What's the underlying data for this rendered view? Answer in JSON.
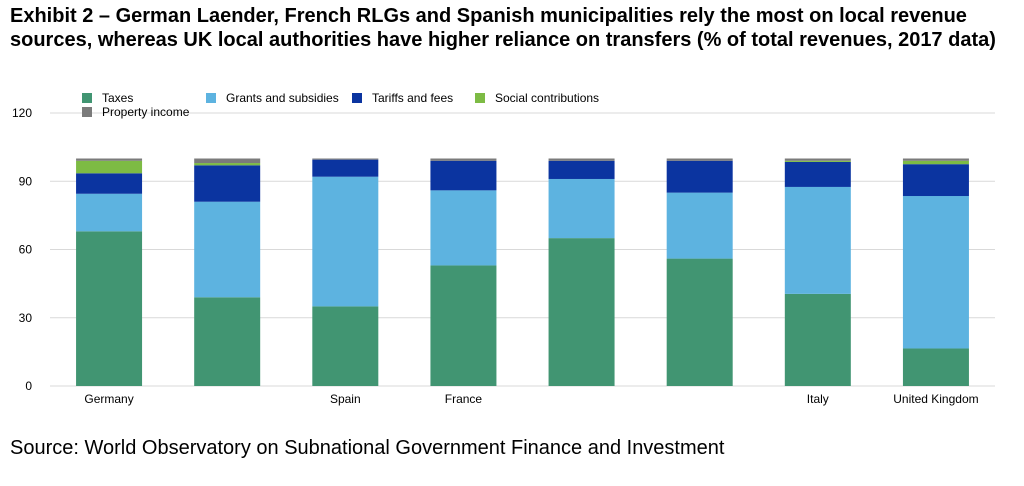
{
  "title": "Exhibit 2 – German Laender, French RLGs and Spanish municipalities rely the most on local revenue sources, whereas UK local authorities have higher reliance on transfers (% of total revenues, 2017 data)",
  "source": "Source: World Observatory on Subnational Government Finance and Investment",
  "colors": {
    "Taxes": "#419572",
    "Grants and subsidies": "#5db3e0",
    "Tariffs and fees": "#0b34a0",
    "Social contributions": "#7dbb44",
    "Property income": "#7b7b7b",
    "grid": "#d9d9d9"
  },
  "chart_data": {
    "type": "bar",
    "stacked": true,
    "categories": [
      "Germany",
      "",
      "Spain",
      "France",
      "",
      "",
      "Italy",
      "United Kingdom"
    ],
    "series": [
      {
        "name": "Taxes",
        "values": [
          68,
          39,
          35,
          53,
          65,
          56,
          40.5,
          16.5
        ]
      },
      {
        "name": "Grants and subsidies",
        "values": [
          16.5,
          42,
          57,
          33,
          26,
          29,
          47,
          67
        ]
      },
      {
        "name": "Tariffs and fees",
        "values": [
          9,
          16,
          7.5,
          13,
          8,
          14,
          11,
          14
        ]
      },
      {
        "name": "Social contributions",
        "values": [
          5.5,
          1,
          0,
          0,
          0,
          0,
          0.5,
          1.5
        ]
      },
      {
        "name": "Property income",
        "values": [
          1,
          2,
          0.5,
          1,
          1,
          1,
          1,
          1
        ]
      }
    ],
    "ylim": [
      0,
      120
    ],
    "yticks": [
      0,
      30,
      60,
      90,
      120
    ],
    "grid": true,
    "legend_position": "top-left"
  }
}
